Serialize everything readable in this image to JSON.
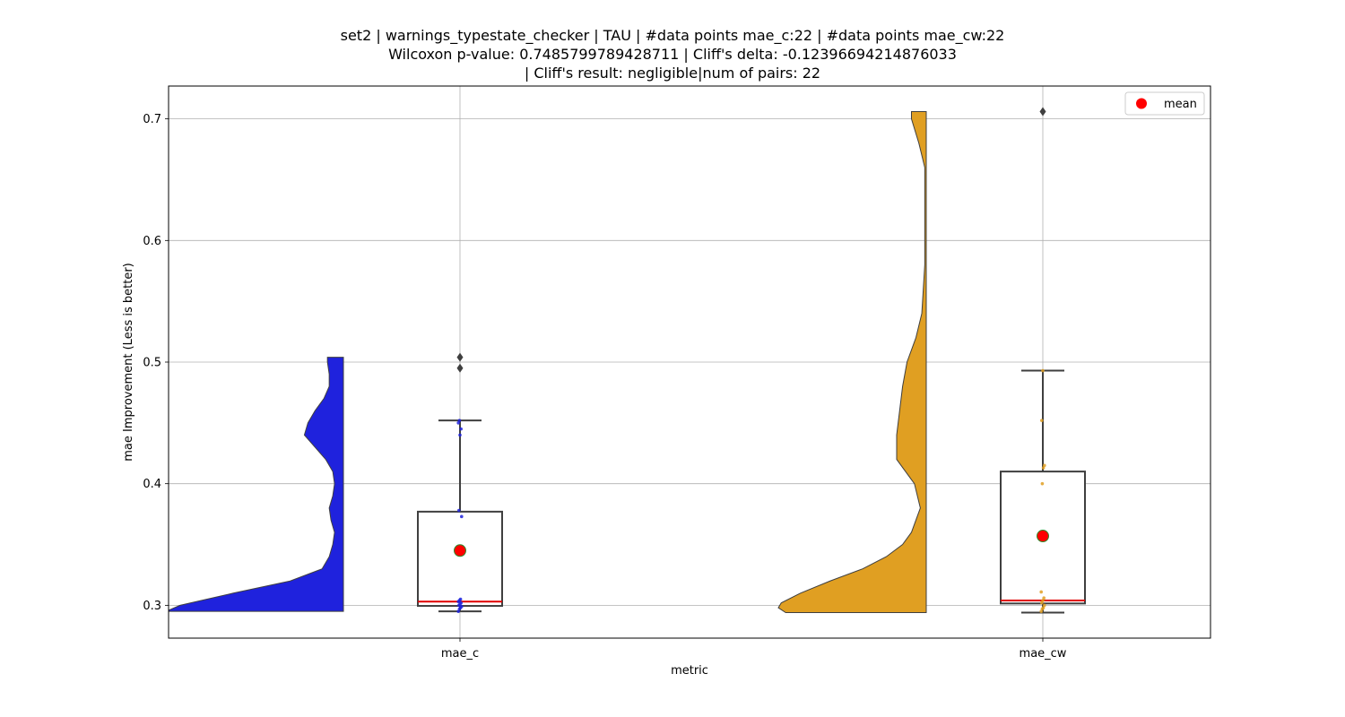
{
  "title_lines": [
    "set2 | warnings_typestate_checker | TAU | #data points mae_c:22 | #data points mae_cw:22",
    "Wilcoxon p-value: 0.7485799789428711 | Cliff's delta: -0.12396694214876033",
    "| Cliff's result: negligible|num of pairs: 22"
  ],
  "chart_data": {
    "type": "violin+box",
    "title": "set2 | warnings_typestate_checker | TAU | #data points mae_c:22 | #data points mae_cw:22\nWilcoxon p-value: 0.7485799789428711 | Cliff's delta: -0.12396694214876033\n| Cliff's result: negligible|num of pairs: 22",
    "xlabel": "metric",
    "ylabel": "mae Improvement (Less is better)",
    "categories": [
      "mae_c",
      "mae_cw"
    ],
    "ylim": [
      0.273,
      0.727
    ],
    "yticks": [
      0.3,
      0.4,
      0.5,
      0.6,
      0.7
    ],
    "ytick_labels": [
      "0.3",
      "0.4",
      "0.5",
      "0.6",
      "0.7"
    ],
    "grid": true,
    "legend": {
      "placement": "top-right",
      "entries": [
        {
          "label": "mean",
          "color": "#ff0000",
          "marker": "circle"
        }
      ]
    },
    "series": [
      {
        "category": "mae_c",
        "violin_color": "#1f22dd",
        "violin_profile": [
          [
            0.295,
            1.0
          ],
          [
            0.3,
            0.92
          ],
          [
            0.31,
            0.62
          ],
          [
            0.32,
            0.3
          ],
          [
            0.33,
            0.12
          ],
          [
            0.34,
            0.08
          ],
          [
            0.35,
            0.06
          ],
          [
            0.36,
            0.05
          ],
          [
            0.37,
            0.07
          ],
          [
            0.38,
            0.08
          ],
          [
            0.39,
            0.06
          ],
          [
            0.4,
            0.05
          ],
          [
            0.41,
            0.06
          ],
          [
            0.42,
            0.1
          ],
          [
            0.43,
            0.16
          ],
          [
            0.44,
            0.22
          ],
          [
            0.45,
            0.2
          ],
          [
            0.46,
            0.16
          ],
          [
            0.47,
            0.11
          ],
          [
            0.48,
            0.08
          ],
          [
            0.49,
            0.08
          ],
          [
            0.5,
            0.09
          ],
          [
            0.504,
            0.09
          ]
        ],
        "box": {
          "whisker_low": 0.295,
          "q1": 0.2995,
          "median": 0.303,
          "q3": 0.377,
          "whisker_high": 0.452
        },
        "mean": 0.345,
        "outliers": [
          0.495,
          0.504
        ],
        "points": [
          0.295,
          0.297,
          0.298,
          0.299,
          0.3,
          0.301,
          0.302,
          0.303,
          0.304,
          0.305,
          0.373,
          0.378,
          0.44,
          0.445,
          0.45,
          0.452
        ]
      },
      {
        "category": "mae_cw",
        "violin_color": "#e09f22",
        "violin_profile": [
          [
            0.294,
            0.95
          ],
          [
            0.298,
            1.0
          ],
          [
            0.302,
            0.98
          ],
          [
            0.31,
            0.85
          ],
          [
            0.32,
            0.65
          ],
          [
            0.33,
            0.43
          ],
          [
            0.34,
            0.27
          ],
          [
            0.35,
            0.16
          ],
          [
            0.36,
            0.1
          ],
          [
            0.38,
            0.04
          ],
          [
            0.4,
            0.08
          ],
          [
            0.42,
            0.2
          ],
          [
            0.44,
            0.2
          ],
          [
            0.46,
            0.18
          ],
          [
            0.48,
            0.16
          ],
          [
            0.5,
            0.13
          ],
          [
            0.52,
            0.07
          ],
          [
            0.54,
            0.03
          ],
          [
            0.58,
            0.01
          ],
          [
            0.62,
            0.01
          ],
          [
            0.66,
            0.01
          ],
          [
            0.68,
            0.05
          ],
          [
            0.7,
            0.1
          ],
          [
            0.706,
            0.1
          ]
        ],
        "box": {
          "whisker_low": 0.294,
          "q1": 0.3015,
          "median": 0.304,
          "q3": 0.41,
          "whisker_high": 0.493
        },
        "mean": 0.357,
        "outliers": [
          0.706
        ],
        "points": [
          0.295,
          0.297,
          0.298,
          0.3,
          0.302,
          0.304,
          0.306,
          0.311,
          0.4,
          0.413,
          0.415,
          0.452,
          0.493
        ]
      }
    ]
  }
}
